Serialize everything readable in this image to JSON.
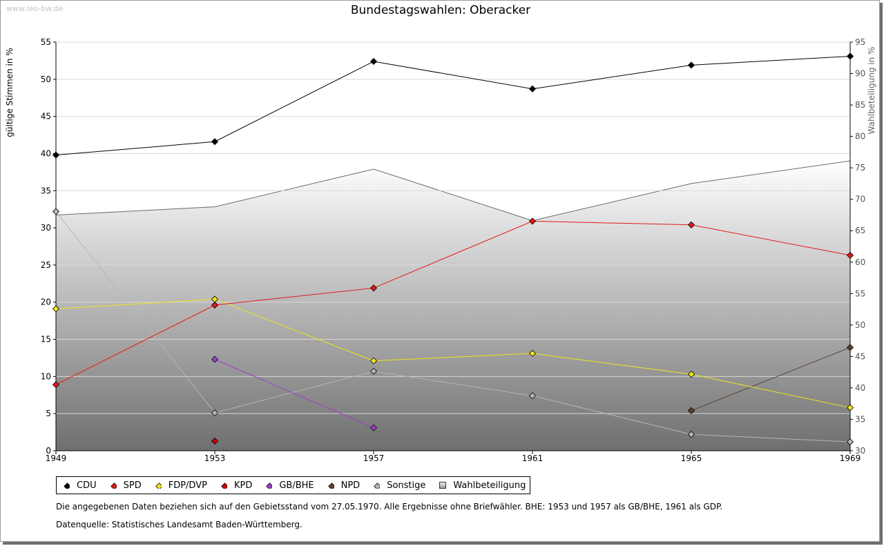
{
  "watermark": "www.leo-bw.de",
  "title": "Bundestagswahlen: Oberacker",
  "notes": {
    "line1": "Die angegebenen Daten beziehen sich auf den Gebietsstand vom 27.05.1970. Alle Ergebnisse ohne Briefwähler. BHE: 1953 und 1957 als GB/BHE, 1961 als GDP.",
    "line2": "Datenquelle: Statistisches Landesamt Baden-Württemberg."
  },
  "chart_data": {
    "type": "line",
    "title": "Bundestagswahlen: Oberacker",
    "x": [
      1949,
      1953,
      1957,
      1961,
      1965,
      1969
    ],
    "xticks": [
      "1949",
      "1953",
      "1957",
      "1961",
      "1965",
      "1969"
    ],
    "ylabel": "gültige Stimmen in %",
    "ylim": [
      0,
      55
    ],
    "yticks": [
      "0",
      "5",
      "10",
      "15",
      "20",
      "25",
      "30",
      "35",
      "40",
      "45",
      "50",
      "55"
    ],
    "y2label": "Wahlbeteiligung in %",
    "y2lim": [
      30,
      95
    ],
    "y2ticks": [
      "30",
      "35",
      "40",
      "45",
      "50",
      "55",
      "60",
      "65",
      "70",
      "75",
      "80",
      "85",
      "90",
      "95"
    ],
    "grid": true,
    "legend_position": "bottom",
    "series": [
      {
        "name": "CDU",
        "color": "#000000",
        "values": [
          39.8,
          41.6,
          52.4,
          48.7,
          51.9,
          53.1
        ]
      },
      {
        "name": "SPD",
        "color": "#e31818",
        "values": [
          8.9,
          19.6,
          21.9,
          30.9,
          30.4,
          26.3
        ]
      },
      {
        "name": "FDP/DVP",
        "color": "#f0e61a",
        "values": [
          19.1,
          20.4,
          12.1,
          13.1,
          10.3,
          5.8
        ]
      },
      {
        "name": "KPD",
        "color": "#cc0000",
        "values": [
          null,
          1.3,
          null,
          null,
          null,
          null
        ]
      },
      {
        "name": "GB/BHE",
        "color": "#9b3fc8",
        "values": [
          null,
          12.3,
          3.1,
          null,
          null,
          null
        ]
      },
      {
        "name": "NPD",
        "color": "#5a4233",
        "values": [
          null,
          null,
          null,
          null,
          5.4,
          13.9
        ]
      },
      {
        "name": "Sonstige",
        "color": "#b5b5b5",
        "values": [
          32.2,
          5.1,
          10.7,
          7.4,
          2.2,
          1.2
        ]
      }
    ],
    "turnout": {
      "name": "Wahlbeteiligung",
      "axis": "right",
      "values": [
        67.5,
        68.8,
        74.8,
        66.6,
        72.5,
        76.1
      ]
    }
  }
}
